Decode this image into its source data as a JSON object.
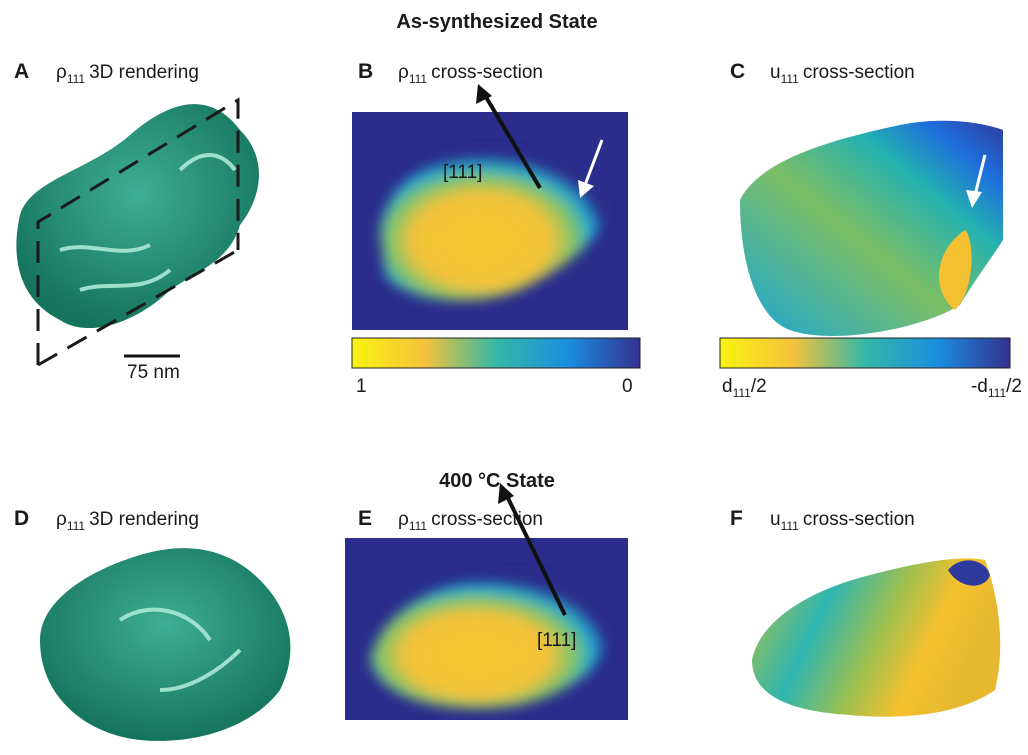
{
  "rows": [
    {
      "title": "As-synthesized State",
      "panels": [
        {
          "letter": "A",
          "label": {
            "symbol": "ρ",
            "subscript": "111",
            "text": "3D rendering"
          },
          "scale_bar": "75 nm"
        },
        {
          "letter": "B",
          "label": {
            "symbol": "ρ",
            "subscript": "111",
            "text": "cross-section"
          },
          "annotation": "[111]",
          "colorbar": {
            "left": "1",
            "right": "0"
          }
        },
        {
          "letter": "C",
          "label": {
            "symbol": "u",
            "subscript": "111",
            "text": "cross-section"
          },
          "colorbar": {
            "left": {
              "symbol": "d",
              "subscript": "111",
              "text": "/2"
            },
            "right": {
              "symbol": "-d",
              "subscript": "111",
              "text": "/2"
            }
          }
        }
      ]
    },
    {
      "title": "400 °C State",
      "panels": [
        {
          "letter": "D",
          "label": {
            "symbol": "ρ",
            "subscript": "111",
            "text": "3D rendering"
          }
        },
        {
          "letter": "E",
          "label": {
            "symbol": "ρ",
            "subscript": "111",
            "text": "cross-section"
          },
          "annotation": "[111]"
        },
        {
          "letter": "F",
          "label": {
            "symbol": "u",
            "subscript": "111",
            "text": "cross-section"
          }
        }
      ]
    }
  ]
}
